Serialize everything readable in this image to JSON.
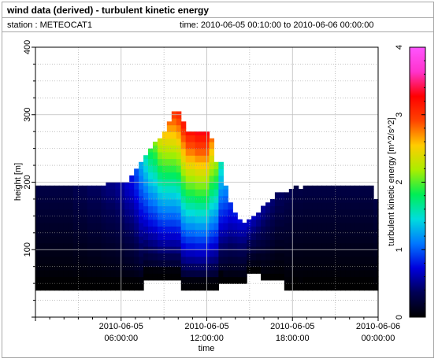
{
  "window": {
    "title": "wind data (derived) - turbulent kinetic energy",
    "station_label": "station : METEOCAT1",
    "time_label": "time: 2010-06-05 00:10:00 to 2010-06-06 00:00:00"
  },
  "chart_data": {
    "type": "heatmap",
    "title": "wind data (derived) - turbulent kinetic energy",
    "xlabel": "time",
    "ylabel": "height [m]",
    "colorbar_label": "turbulent kinetic energy [m^2/s^2]",
    "x_ticks": [
      {
        "hour": 6,
        "line1": "2010-06-05",
        "line2": "06:00:00"
      },
      {
        "hour": 12,
        "line1": "2010-06-05",
        "line2": "12:00:00"
      },
      {
        "hour": 18,
        "line1": "2010-06-05",
        "line2": "18:00:00"
      },
      {
        "hour": 24,
        "line1": "2010-06-06",
        "line2": "00:00:00"
      }
    ],
    "xlim_hours": [
      0,
      24
    ],
    "y_ticks": [
      100,
      200,
      300,
      400
    ],
    "ylim": [
      0,
      400
    ],
    "colorbar_ticks": [
      0,
      1,
      2,
      3,
      4
    ],
    "colorbar_range": [
      0,
      4
    ],
    "colormap": [
      "#000000",
      "#000055",
      "#0000dd",
      "#0077ff",
      "#00dddd",
      "#00ee55",
      "#aaee00",
      "#ffcc00",
      "#ff4400",
      "#ff0000",
      "#ff33cc",
      "#ff55ff"
    ],
    "grid": true,
    "profile_top_height_m": [
      195,
      195,
      195,
      195,
      195,
      195,
      195,
      195,
      195,
      195,
      195,
      195,
      195,
      195,
      195,
      200,
      200,
      200,
      200,
      200,
      210,
      220,
      230,
      240,
      250,
      260,
      265,
      275,
      290,
      305,
      305,
      290,
      275,
      275,
      275,
      275,
      275,
      265,
      230,
      230,
      195,
      170,
      155,
      145,
      140,
      145,
      150,
      155,
      165,
      170,
      175,
      185,
      185,
      185,
      190,
      195,
      190,
      195,
      195,
      195,
      195,
      195,
      195,
      195,
      195,
      195,
      195,
      195,
      195,
      195,
      195,
      195,
      175
    ],
    "profile_bottom_height_m": [
      40,
      40,
      40,
      40,
      40,
      40,
      40,
      40,
      40,
      40,
      40,
      40,
      40,
      40,
      40,
      40,
      40,
      40,
      40,
      40,
      40,
      40,
      40,
      55,
      55,
      55,
      55,
      55,
      55,
      55,
      55,
      40,
      40,
      40,
      40,
      40,
      40,
      40,
      40,
      50,
      50,
      50,
      50,
      50,
      50,
      65,
      65,
      65,
      55,
      55,
      55,
      55,
      55,
      40,
      40,
      40,
      40,
      40,
      40,
      40,
      40,
      40,
      40,
      40,
      40,
      40,
      40,
      40,
      40,
      40,
      40,
      40,
      40
    ],
    "peak_values": [
      0.3,
      0.3,
      0.3,
      0.3,
      0.3,
      0.3,
      0.3,
      0.3,
      0.35,
      0.35,
      0.35,
      0.4,
      0.4,
      0.4,
      0.45,
      0.5,
      0.5,
      0.55,
      0.6,
      0.7,
      0.8,
      1.0,
      1.3,
      1.6,
      1.9,
      2.1,
      2.4,
      2.6,
      2.8,
      3.0,
      3.1,
      3.2,
      3.2,
      3.2,
      3.3,
      3.3,
      3.3,
      2.8,
      2.2,
      1.6,
      1.2,
      0.9,
      0.8,
      0.75,
      0.7,
      0.7,
      0.65,
      0.6,
      0.55,
      0.5,
      0.45,
      0.4,
      0.4,
      0.35,
      0.35,
      0.3,
      0.3,
      0.3,
      0.3,
      0.3,
      0.3,
      0.3,
      0.3,
      0.3,
      0.3,
      0.3,
      0.3,
      0.3,
      0.3,
      0.3,
      0.3,
      0.3,
      0.3
    ]
  }
}
